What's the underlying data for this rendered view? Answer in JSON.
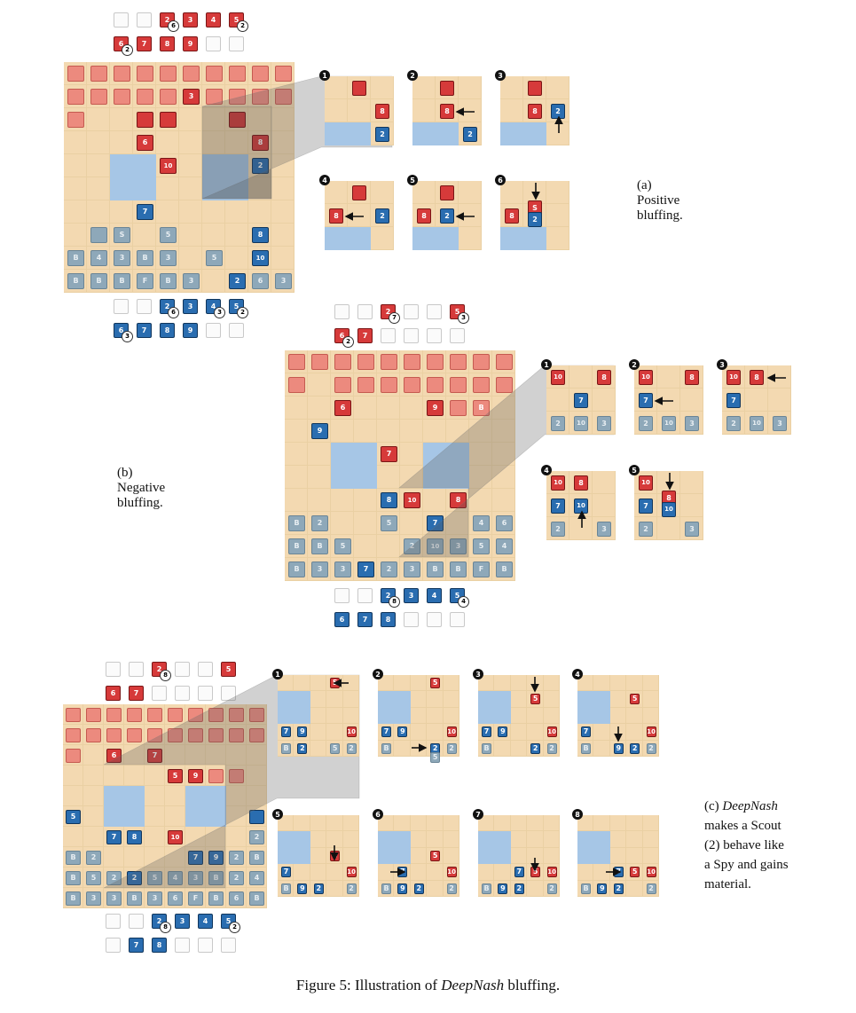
{
  "figure": {
    "caption_prefix": "Figure 5: Illustration of ",
    "caption_name": "DeepNash",
    "caption_suffix": " bluffing."
  },
  "panel_a": {
    "caption": "(a) Positive bluffing.",
    "top_captured": [
      [
        {
          "c": "empty"
        },
        {
          "c": "empty"
        },
        {
          "c": "red",
          "t": "2",
          "n": "6"
        },
        {
          "c": "red",
          "t": "3"
        },
        {
          "c": "red",
          "t": "4"
        },
        {
          "c": "red",
          "t": "5",
          "n": "2"
        }
      ],
      [
        {
          "c": "red",
          "t": "6",
          "n": "2"
        },
        {
          "c": "red",
          "t": "7"
        },
        {
          "c": "red",
          "t": "8"
        },
        {
          "c": "red",
          "t": "9"
        },
        {
          "c": "empty"
        },
        {
          "c": "empty"
        }
      ]
    ],
    "bottom_captured": [
      [
        {
          "c": "empty"
        },
        {
          "c": "empty"
        },
        {
          "c": "blue",
          "t": "2",
          "n": "6"
        },
        {
          "c": "blue",
          "t": "3"
        },
        {
          "c": "blue",
          "t": "4",
          "n": "3"
        },
        {
          "c": "blue",
          "t": "5",
          "n": "2"
        }
      ],
      [
        {
          "c": "blue",
          "t": "6",
          "n": "3"
        },
        {
          "c": "blue",
          "t": "7"
        },
        {
          "c": "blue",
          "t": "8"
        },
        {
          "c": "blue",
          "t": "9"
        },
        {
          "c": "empty"
        },
        {
          "c": "empty"
        }
      ]
    ],
    "steps": [
      "1",
      "2",
      "3",
      "4",
      "5",
      "6"
    ]
  },
  "panel_b": {
    "caption": "(b) Negative bluffing.",
    "top_captured": [
      [
        {
          "c": "empty"
        },
        {
          "c": "empty"
        },
        {
          "c": "red",
          "t": "2",
          "n": "7"
        },
        {
          "c": "empty"
        },
        {
          "c": "empty"
        },
        {
          "c": "red",
          "t": "5",
          "n": "3"
        }
      ],
      [
        {
          "c": "red",
          "t": "6",
          "n": "2"
        },
        {
          "c": "red",
          "t": "7"
        },
        {
          "c": "empty"
        },
        {
          "c": "empty"
        },
        {
          "c": "empty"
        },
        {
          "c": "empty"
        }
      ]
    ],
    "bottom_captured": [
      [
        {
          "c": "empty"
        },
        {
          "c": "empty"
        },
        {
          "c": "blue",
          "t": "2",
          "n": "8"
        },
        {
          "c": "blue",
          "t": "3"
        },
        {
          "c": "blue",
          "t": "4"
        },
        {
          "c": "blue",
          "t": "5",
          "n": "4"
        }
      ],
      [
        {
          "c": "blue",
          "t": "6"
        },
        {
          "c": "blue",
          "t": "7"
        },
        {
          "c": "blue",
          "t": "8"
        },
        {
          "c": "empty"
        },
        {
          "c": "empty"
        },
        {
          "c": "empty"
        }
      ]
    ],
    "steps": [
      "1",
      "2",
      "3",
      "4",
      "5"
    ]
  },
  "panel_c": {
    "caption_lines": [
      "(c)",
      "DeepNash",
      "makes a Scout",
      "(2) behave like",
      "a Spy and gains",
      "material."
    ],
    "top_captured": [
      [
        {
          "c": "empty"
        },
        {
          "c": "empty"
        },
        {
          "c": "red",
          "t": "2",
          "n": "8"
        },
        {
          "c": "empty"
        },
        {
          "c": "empty"
        },
        {
          "c": "red",
          "t": "5"
        }
      ],
      [
        {
          "c": "red",
          "t": "6"
        },
        {
          "c": "red",
          "t": "7"
        },
        {
          "c": "empty"
        },
        {
          "c": "empty"
        },
        {
          "c": "empty"
        },
        {
          "c": "empty"
        }
      ]
    ],
    "bottom_captured": [
      [
        {
          "c": "empty"
        },
        {
          "c": "empty"
        },
        {
          "c": "blue",
          "t": "2",
          "n": "8"
        },
        {
          "c": "blue",
          "t": "3"
        },
        {
          "c": "blue",
          "t": "4"
        },
        {
          "c": "blue",
          "t": "5",
          "n": "2"
        }
      ],
      [
        {
          "c": "empty"
        },
        {
          "c": "blue",
          "t": "7"
        },
        {
          "c": "blue",
          "t": "8"
        },
        {
          "c": "empty"
        },
        {
          "c": "empty"
        },
        {
          "c": "empty"
        }
      ]
    ],
    "steps": [
      "1",
      "2",
      "3",
      "4",
      "5",
      "6",
      "7",
      "8"
    ]
  },
  "boards": {
    "a_main": {
      "pieces": [
        [
          0,
          0,
          "redh",
          ""
        ],
        [
          0,
          1,
          "redh",
          ""
        ],
        [
          0,
          2,
          "redh",
          ""
        ],
        [
          0,
          3,
          "redh",
          ""
        ],
        [
          0,
          4,
          "redh",
          ""
        ],
        [
          0,
          5,
          "redh",
          ""
        ],
        [
          0,
          6,
          "redh",
          ""
        ],
        [
          0,
          7,
          "redh",
          ""
        ],
        [
          0,
          8,
          "redh",
          ""
        ],
        [
          0,
          9,
          "redh",
          ""
        ],
        [
          1,
          0,
          "redh",
          ""
        ],
        [
          1,
          1,
          "redh",
          ""
        ],
        [
          1,
          2,
          "redh",
          ""
        ],
        [
          1,
          3,
          "redh",
          ""
        ],
        [
          1,
          4,
          "redh",
          ""
        ],
        [
          1,
          5,
          "red",
          "3"
        ],
        [
          1,
          6,
          "redh",
          ""
        ],
        [
          1,
          7,
          "redh",
          ""
        ],
        [
          1,
          8,
          "redh",
          ""
        ],
        [
          1,
          9,
          "redh",
          ""
        ],
        [
          2,
          0,
          "redh",
          ""
        ],
        [
          2,
          3,
          "red",
          ""
        ],
        [
          2,
          4,
          "red",
          ""
        ],
        [
          2,
          7,
          "red",
          ""
        ],
        [
          3,
          3,
          "red",
          "6"
        ],
        [
          3,
          8,
          "red",
          "8"
        ],
        [
          4,
          4,
          "red",
          "10"
        ],
        [
          4,
          8,
          "blue",
          "2"
        ],
        [
          6,
          3,
          "blue",
          "7"
        ],
        [
          7,
          1,
          "blueh",
          ""
        ],
        [
          7,
          2,
          "blueh",
          "S"
        ],
        [
          7,
          4,
          "blueh",
          "5"
        ],
        [
          7,
          8,
          "blue",
          "8"
        ],
        [
          8,
          0,
          "blueh",
          "B"
        ],
        [
          8,
          1,
          "blueh",
          "4"
        ],
        [
          8,
          2,
          "blueh",
          "3"
        ],
        [
          8,
          3,
          "blueh",
          "B"
        ],
        [
          8,
          4,
          "blueh",
          "3"
        ],
        [
          8,
          6,
          "blueh",
          "5"
        ],
        [
          8,
          8,
          "blue",
          "10"
        ],
        [
          9,
          0,
          "blueh",
          "B"
        ],
        [
          9,
          1,
          "blueh",
          "B"
        ],
        [
          9,
          2,
          "blueh",
          "B"
        ],
        [
          9,
          3,
          "blueh",
          "F"
        ],
        [
          9,
          4,
          "blueh",
          "B"
        ],
        [
          9,
          5,
          "blueh",
          "3"
        ],
        [
          9,
          7,
          "blue",
          "2"
        ],
        [
          9,
          8,
          "blueh",
          "6"
        ],
        [
          9,
          9,
          "blueh",
          "3"
        ]
      ]
    },
    "b_main": {
      "pieces": [
        [
          0,
          0,
          "redh",
          ""
        ],
        [
          0,
          1,
          "redh",
          ""
        ],
        [
          0,
          2,
          "redh",
          ""
        ],
        [
          0,
          3,
          "redh",
          ""
        ],
        [
          0,
          4,
          "redh",
          ""
        ],
        [
          0,
          5,
          "redh",
          ""
        ],
        [
          0,
          6,
          "redh",
          ""
        ],
        [
          0,
          7,
          "redh",
          ""
        ],
        [
          0,
          8,
          "redh",
          ""
        ],
        [
          0,
          9,
          "redh",
          ""
        ],
        [
          1,
          0,
          "redh",
          ""
        ],
        [
          1,
          2,
          "redh",
          ""
        ],
        [
          1,
          3,
          "redh",
          ""
        ],
        [
          1,
          4,
          "redh",
          ""
        ],
        [
          1,
          5,
          "redh",
          ""
        ],
        [
          1,
          6,
          "redh",
          ""
        ],
        [
          1,
          7,
          "redh",
          ""
        ],
        [
          1,
          8,
          "redh",
          ""
        ],
        [
          1,
          9,
          "redh",
          ""
        ],
        [
          2,
          2,
          "red",
          "6"
        ],
        [
          2,
          6,
          "red",
          "9"
        ],
        [
          2,
          7,
          "redh",
          ""
        ],
        [
          2,
          8,
          "redh",
          "B"
        ],
        [
          3,
          1,
          "blue",
          "9"
        ],
        [
          4,
          4,
          "red",
          "7"
        ],
        [
          6,
          4,
          "blue",
          "8"
        ],
        [
          6,
          5,
          "red",
          "10"
        ],
        [
          6,
          7,
          "red",
          "8"
        ],
        [
          7,
          0,
          "blueh",
          "B"
        ],
        [
          7,
          1,
          "blueh",
          "2"
        ],
        [
          7,
          4,
          "blueh",
          "5"
        ],
        [
          7,
          6,
          "blue",
          "7"
        ],
        [
          7,
          8,
          "blueh",
          "4"
        ],
        [
          7,
          9,
          "blueh",
          "6"
        ],
        [
          8,
          0,
          "blueh",
          "B"
        ],
        [
          8,
          1,
          "blueh",
          "B"
        ],
        [
          8,
          2,
          "blueh",
          "5"
        ],
        [
          8,
          5,
          "blueh",
          "2"
        ],
        [
          8,
          6,
          "blueh",
          "10"
        ],
        [
          8,
          7,
          "blueh",
          "3"
        ],
        [
          8,
          8,
          "blueh",
          "5"
        ],
        [
          8,
          9,
          "blueh",
          "4"
        ],
        [
          9,
          0,
          "blueh",
          "B"
        ],
        [
          9,
          1,
          "blueh",
          "3"
        ],
        [
          9,
          2,
          "blueh",
          "3"
        ],
        [
          9,
          3,
          "blue",
          "7"
        ],
        [
          9,
          4,
          "blueh",
          "2"
        ],
        [
          9,
          5,
          "blueh",
          "3"
        ],
        [
          9,
          6,
          "blueh",
          "B"
        ],
        [
          9,
          7,
          "blueh",
          "B"
        ],
        [
          9,
          8,
          "blueh",
          "F"
        ],
        [
          9,
          9,
          "blueh",
          "B"
        ]
      ]
    },
    "c_main": {
      "pieces": [
        [
          0,
          0,
          "redh",
          ""
        ],
        [
          0,
          1,
          "redh",
          ""
        ],
        [
          0,
          2,
          "redh",
          ""
        ],
        [
          0,
          3,
          "redh",
          ""
        ],
        [
          0,
          4,
          "redh",
          ""
        ],
        [
          0,
          5,
          "redh",
          ""
        ],
        [
          0,
          6,
          "redh",
          ""
        ],
        [
          0,
          7,
          "redh",
          ""
        ],
        [
          0,
          8,
          "redh",
          ""
        ],
        [
          0,
          9,
          "redh",
          ""
        ],
        [
          1,
          0,
          "redh",
          ""
        ],
        [
          1,
          1,
          "redh",
          ""
        ],
        [
          1,
          2,
          "redh",
          ""
        ],
        [
          1,
          3,
          "redh",
          ""
        ],
        [
          1,
          4,
          "redh",
          ""
        ],
        [
          1,
          5,
          "redh",
          ""
        ],
        [
          1,
          6,
          "redh",
          ""
        ],
        [
          1,
          7,
          "redh",
          ""
        ],
        [
          1,
          8,
          "redh",
          ""
        ],
        [
          1,
          9,
          "redh",
          ""
        ],
        [
          2,
          0,
          "redh",
          ""
        ],
        [
          2,
          2,
          "red",
          "6"
        ],
        [
          2,
          4,
          "red",
          "7"
        ],
        [
          3,
          5,
          "red",
          "5"
        ],
        [
          3,
          6,
          "red",
          "9"
        ],
        [
          3,
          7,
          "redh",
          ""
        ],
        [
          3,
          8,
          "redh",
          ""
        ],
        [
          5,
          0,
          "blue",
          "5"
        ],
        [
          5,
          9,
          "blue",
          ""
        ],
        [
          6,
          2,
          "blue",
          "7"
        ],
        [
          6,
          3,
          "blue",
          "8"
        ],
        [
          6,
          5,
          "red",
          "10"
        ],
        [
          6,
          9,
          "blueh",
          "2"
        ],
        [
          7,
          0,
          "blueh",
          "B"
        ],
        [
          7,
          1,
          "blueh",
          "2"
        ],
        [
          7,
          6,
          "blue",
          "7"
        ],
        [
          7,
          7,
          "blue",
          "9"
        ],
        [
          7,
          8,
          "blueh",
          "2"
        ],
        [
          7,
          9,
          "blueh",
          "B"
        ],
        [
          8,
          0,
          "blueh",
          "B"
        ],
        [
          8,
          1,
          "blueh",
          "5"
        ],
        [
          8,
          2,
          "blueh",
          "2"
        ],
        [
          8,
          3,
          "blue",
          "2"
        ],
        [
          8,
          4,
          "blueh",
          "5"
        ],
        [
          8,
          5,
          "blueh",
          "4"
        ],
        [
          8,
          6,
          "blueh",
          "3"
        ],
        [
          8,
          7,
          "blueh",
          "B"
        ],
        [
          8,
          8,
          "blueh",
          "2"
        ],
        [
          8,
          9,
          "blueh",
          "4"
        ],
        [
          9,
          0,
          "blueh",
          "B"
        ],
        [
          9,
          1,
          "blueh",
          "3"
        ],
        [
          9,
          2,
          "blueh",
          "3"
        ],
        [
          9,
          3,
          "blueh",
          "B"
        ],
        [
          9,
          4,
          "blueh",
          "3"
        ],
        [
          9,
          5,
          "blueh",
          "6"
        ],
        [
          9,
          6,
          "blueh",
          "F"
        ],
        [
          9,
          7,
          "blueh",
          "B"
        ],
        [
          9,
          8,
          "blueh",
          "6"
        ],
        [
          9,
          9,
          "blueh",
          "B"
        ]
      ]
    }
  }
}
